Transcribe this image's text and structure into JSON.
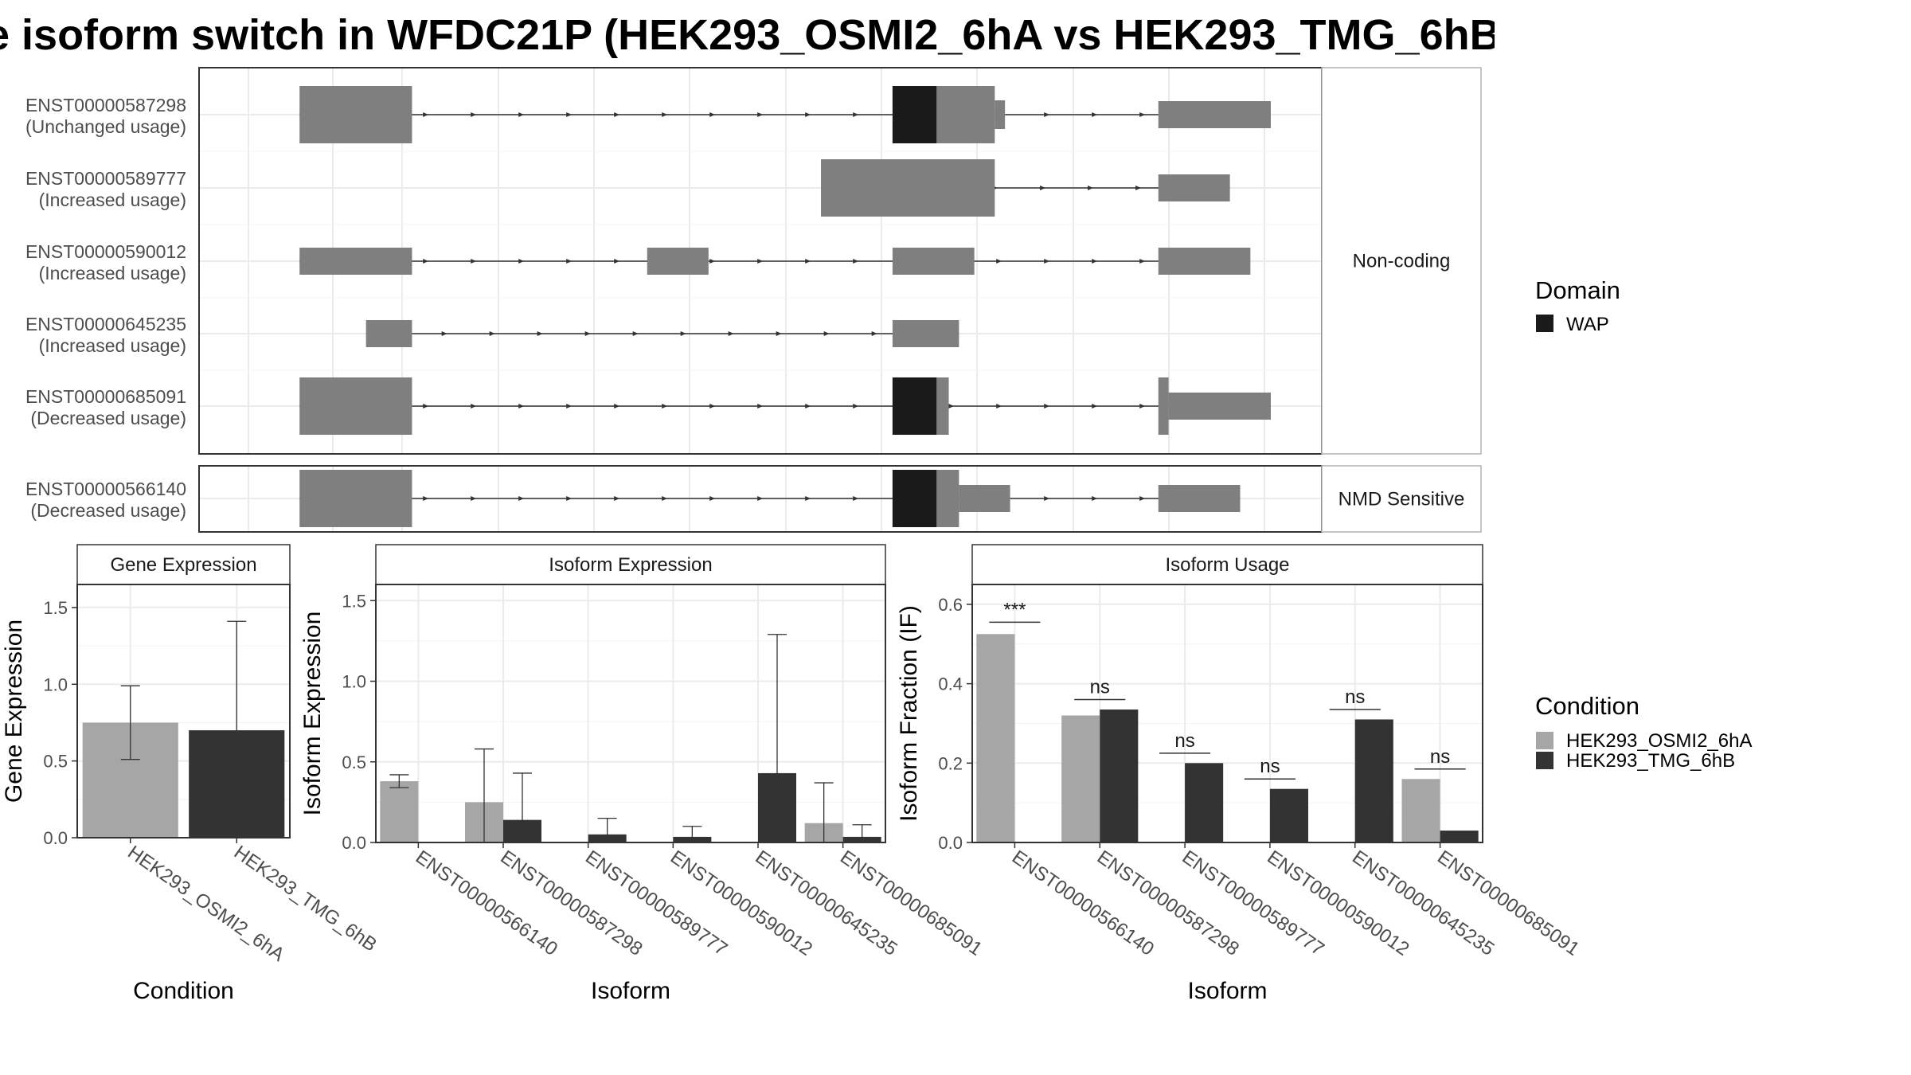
{
  "title": "e isoform switch in WFDC21P (HEK293_OSMI2_6hA vs HEK293_TMG_6hB",
  "colors": {
    "exon": "#7f7f7f",
    "domain": "#1a1a1a",
    "condition_a": "#a6a6a6",
    "condition_b": "#333333",
    "grid": "#ebebeb",
    "panel_border": "#333333"
  },
  "chart_data": [
    {
      "type": "transcript_structure",
      "xlim": [
        0,
        100
      ],
      "groups": [
        {
          "label": "Non-coding",
          "transcripts": [
            {
              "id": "ENST00000587298",
              "usage": "(Unchanged usage)",
              "exons": [
                [
                  5,
                  16,
                  "tall"
                ],
                [
                  63,
                  73,
                  "tall"
                ],
                [
                  73,
                  74,
                  "mid"
                ],
                [
                  89,
                  100,
                  "short"
                ]
              ],
              "domains": [
                [
                  63,
                  67.3
                ]
              ]
            },
            {
              "id": "ENST00000589777",
              "usage": "(Increased usage)",
              "exons": [
                [
                  56,
                  73,
                  "tall"
                ],
                [
                  89,
                  96,
                  "short"
                ]
              ],
              "domains": []
            },
            {
              "id": "ENST00000590012",
              "usage": "(Increased usage)",
              "exons": [
                [
                  5,
                  16,
                  "short"
                ],
                [
                  39,
                  45,
                  "short"
                ],
                [
                  63,
                  71,
                  "short"
                ],
                [
                  89,
                  98,
                  "short"
                ]
              ],
              "domains": []
            },
            {
              "id": "ENST00000645235",
              "usage": "(Increased usage)",
              "exons": [
                [
                  11.5,
                  16,
                  "short"
                ],
                [
                  63,
                  69.5,
                  "short"
                ]
              ],
              "domains": []
            },
            {
              "id": "ENST00000685091",
              "usage": "(Decreased usage)",
              "exons": [
                [
                  5,
                  16,
                  "tall"
                ],
                [
                  63,
                  68.5,
                  "tall"
                ],
                [
                  89,
                  90,
                  "tall"
                ],
                [
                  90,
                  100,
                  "short"
                ]
              ],
              "domains": [
                [
                  63,
                  67.3
                ]
              ]
            }
          ]
        },
        {
          "label": "NMD Sensitive",
          "transcripts": [
            {
              "id": "ENST00000566140",
              "usage": "(Decreased usage)",
              "exons": [
                [
                  5,
                  16,
                  "tall"
                ],
                [
                  63,
                  69.5,
                  "tall"
                ],
                [
                  69.5,
                  74.5,
                  "short"
                ],
                [
                  89,
                  97,
                  "short"
                ]
              ],
              "domains": [
                [
                  63,
                  67.3
                ]
              ]
            }
          ]
        }
      ],
      "legend": {
        "title": "Domain",
        "entries": [
          {
            "name": "WAP",
            "color": "#1a1a1a"
          }
        ]
      }
    },
    {
      "type": "bar",
      "title": "Gene Expression",
      "xlabel": "Condition",
      "ylabel": "Gene Expression",
      "ylim": [
        0,
        1.65
      ],
      "yticks": [
        "0.0",
        "0.5",
        "1.0",
        "1.5"
      ],
      "categories": [
        "HEK293_OSMI2_6hA",
        "HEK293_TMG_6hB"
      ],
      "values": [
        0.75,
        0.7
      ],
      "errors": [
        [
          0.51,
          0.99
        ],
        [
          0.0,
          1.41
        ]
      ]
    },
    {
      "type": "bar",
      "title": "Isoform Expression",
      "xlabel": "Isoform",
      "ylabel": "Isoform Expression",
      "ylim": [
        0,
        1.6
      ],
      "yticks": [
        "0.0",
        "0.5",
        "1.0",
        "1.5"
      ],
      "categories": [
        "ENST00000566140",
        "ENST00000587298",
        "ENST00000589777",
        "ENST00000590012",
        "ENST00000645235",
        "ENST00000685091"
      ],
      "series": [
        {
          "name": "HEK293_OSMI2_6hA",
          "values": [
            0.38,
            0.25,
            0.0,
            0.0,
            0.0,
            0.12
          ],
          "errors": [
            [
              0.34,
              0.42
            ],
            [
              0.0,
              0.58
            ],
            null,
            null,
            null,
            [
              0.0,
              0.37
            ]
          ]
        },
        {
          "name": "HEK293_TMG_6hB",
          "values": [
            0.0,
            0.14,
            0.05,
            0.035,
            0.43,
            0.035
          ],
          "errors": [
            null,
            [
              0.0,
              0.43
            ],
            [
              0.0,
              0.15
            ],
            [
              0.0,
              0.1
            ],
            [
              0.0,
              1.29
            ],
            [
              0.0,
              0.11
            ]
          ]
        }
      ]
    },
    {
      "type": "bar",
      "title": "Isoform Usage",
      "xlabel": "Isoform",
      "ylabel": "Isoform Fraction (IF)",
      "ylim": [
        0,
        0.65
      ],
      "yticks": [
        "0.0",
        "0.2",
        "0.4",
        "0.6"
      ],
      "categories": [
        "ENST00000566140",
        "ENST00000587298",
        "ENST00000589777",
        "ENST00000590012",
        "ENST00000645235",
        "ENST00000685091"
      ],
      "series": [
        {
          "name": "HEK293_OSMI2_6hA",
          "values": [
            0.525,
            0.32,
            0.0,
            0.0,
            0.0,
            0.16
          ]
        },
        {
          "name": "HEK293_TMG_6hB",
          "values": [
            0.0,
            0.335,
            0.2,
            0.135,
            0.31,
            0.03
          ]
        }
      ],
      "annotations": [
        {
          "category": "ENST00000566140",
          "label": "***",
          "y": 0.555
        },
        {
          "category": "ENST00000587298",
          "label": "ns",
          "y": 0.36
        },
        {
          "category": "ENST00000589777",
          "label": "ns",
          "y": 0.225
        },
        {
          "category": "ENST00000590012",
          "label": "ns",
          "y": 0.16
        },
        {
          "category": "ENST00000645235",
          "label": "ns",
          "y": 0.335
        },
        {
          "category": "ENST00000685091",
          "label": "ns",
          "y": 0.185
        }
      ],
      "legend": {
        "title": "Condition",
        "entries": [
          {
            "name": "HEK293_OSMI2_6hA",
            "color": "#a6a6a6"
          },
          {
            "name": "HEK293_TMG_6hB",
            "color": "#333333"
          }
        ]
      }
    }
  ]
}
